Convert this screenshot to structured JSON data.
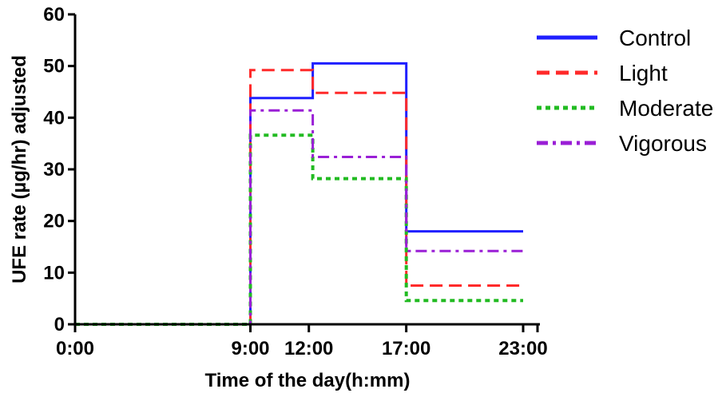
{
  "chart_data": {
    "type": "line",
    "step": true,
    "title": "",
    "xlabel": "Time of the day(h:mm)",
    "ylabel": "UFE rate (µg/hr) adjusted",
    "x_ticks": [
      {
        "hours": 0,
        "label": "0:00"
      },
      {
        "hours": 9,
        "label": "9:00"
      },
      {
        "hours": 12,
        "label": "12:00"
      },
      {
        "hours": 17,
        "label": "17:00"
      },
      {
        "hours": 23,
        "label": "23:00"
      }
    ],
    "xlim": [
      0,
      23
    ],
    "y_ticks": [
      0,
      10,
      20,
      30,
      40,
      50,
      60
    ],
    "ylim": [
      0,
      60
    ],
    "grid": false,
    "legend": "top-right",
    "series": [
      {
        "name": "Control",
        "color": "#1f1fff",
        "dash": "solid",
        "points": [
          [
            0,
            0
          ],
          [
            9,
            0
          ],
          [
            9,
            43.8
          ],
          [
            12.2,
            43.8
          ],
          [
            12.2,
            50.5
          ],
          [
            17,
            50.5
          ],
          [
            17,
            18
          ],
          [
            23,
            18
          ]
        ]
      },
      {
        "name": "Light",
        "color": "#ff2a2a",
        "dash": "dashed",
        "points": [
          [
            0,
            0
          ],
          [
            9,
            0
          ],
          [
            9,
            49.2
          ],
          [
            12.2,
            49.2
          ],
          [
            12.2,
            44.8
          ],
          [
            17,
            44.8
          ],
          [
            17,
            7.5
          ],
          [
            23,
            7.5
          ]
        ]
      },
      {
        "name": "Moderate",
        "color": "#22bb22",
        "dash": "dotted",
        "points": [
          [
            0,
            0
          ],
          [
            9,
            0
          ],
          [
            9,
            36.6
          ],
          [
            12.2,
            36.6
          ],
          [
            12.2,
            28.2
          ],
          [
            17,
            28.2
          ],
          [
            17,
            4.6
          ],
          [
            23,
            4.6
          ]
        ]
      },
      {
        "name": "Vigorous",
        "color": "#9a1fd6",
        "dash": "dashdot",
        "points": [
          [
            0,
            0
          ],
          [
            9,
            0
          ],
          [
            9,
            41.4
          ],
          [
            12.2,
            41.4
          ],
          [
            12.2,
            32.4
          ],
          [
            17,
            32.4
          ],
          [
            17,
            14.2
          ],
          [
            23,
            14.2
          ]
        ]
      }
    ]
  }
}
